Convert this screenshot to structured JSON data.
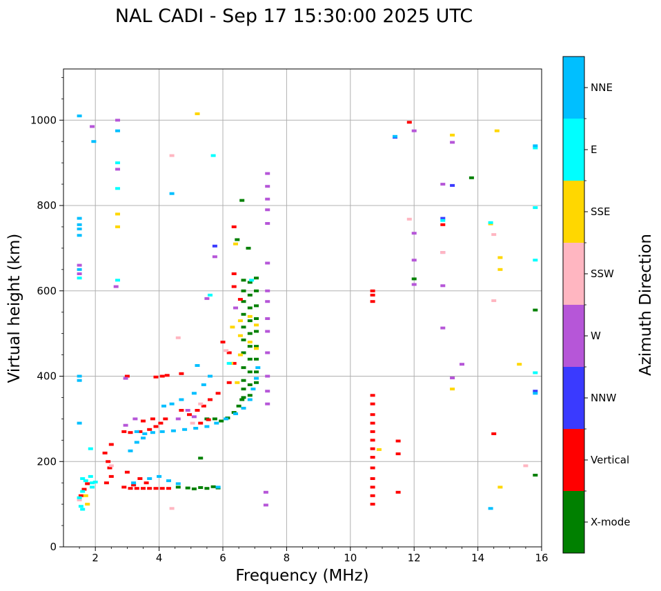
{
  "chart_data": {
    "type": "scatter",
    "title": "NAL CADI - Sep 17 15:30:00 2025 UTC",
    "xlabel": "Frequency (MHz)",
    "ylabel": "Virtual height (km)",
    "xlim": [
      1,
      16
    ],
    "ylim": [
      0,
      1120
    ],
    "xticks": [
      2,
      4,
      6,
      8,
      10,
      12,
      14,
      16
    ],
    "yticks": [
      0,
      200,
      400,
      600,
      800,
      1000
    ],
    "grid": true,
    "colorbar": {
      "label": "Azimuth Direction",
      "categories": [
        {
          "name": "X-mode",
          "color": "#008000"
        },
        {
          "name": "Vertical",
          "color": "#ff0000"
        },
        {
          "name": "NNW",
          "color": "#3a3aff"
        },
        {
          "name": "W",
          "color": "#b656d8"
        },
        {
          "name": "SSW",
          "color": "#ffb6c1"
        },
        {
          "name": "SSE",
          "color": "#ffd700"
        },
        {
          "name": "E",
          "color": "#00ffff"
        },
        {
          "name": "NNE",
          "color": "#00bfff"
        }
      ]
    },
    "series": [
      {
        "name": "X-mode",
        "color": "#008000",
        "points": [
          [
            6.65,
            625
          ],
          [
            6.65,
            600
          ],
          [
            6.65,
            575
          ],
          [
            6.65,
            545
          ],
          [
            6.65,
            515
          ],
          [
            6.65,
            485
          ],
          [
            6.65,
            455
          ],
          [
            6.65,
            420
          ],
          [
            6.65,
            390
          ],
          [
            6.65,
            370
          ],
          [
            6.65,
            350
          ],
          [
            6.85,
            620
          ],
          [
            6.85,
            590
          ],
          [
            6.85,
            560
          ],
          [
            6.85,
            530
          ],
          [
            6.85,
            500
          ],
          [
            6.85,
            470
          ],
          [
            6.85,
            440
          ],
          [
            6.85,
            410
          ],
          [
            6.85,
            380
          ],
          [
            6.85,
            355
          ],
          [
            7.05,
            630
          ],
          [
            7.05,
            600
          ],
          [
            7.05,
            565
          ],
          [
            7.05,
            535
          ],
          [
            7.05,
            505
          ],
          [
            7.05,
            470
          ],
          [
            7.05,
            440
          ],
          [
            7.05,
            410
          ],
          [
            7.05,
            385
          ],
          [
            6.6,
            345
          ],
          [
            6.5,
            330
          ],
          [
            6.35,
            315
          ],
          [
            6.15,
            302
          ],
          [
            5.95,
            295
          ],
          [
            5.75,
            300
          ],
          [
            5.5,
            300
          ],
          [
            4.6,
            140
          ],
          [
            4.9,
            138
          ],
          [
            5.1,
            136
          ],
          [
            5.3,
            139
          ],
          [
            5.5,
            137
          ],
          [
            5.7,
            141
          ],
          [
            5.85,
            138
          ],
          [
            6.45,
            720
          ],
          [
            6.6,
            812
          ],
          [
            6.8,
            700
          ],
          [
            13.8,
            865
          ],
          [
            15.8,
            555
          ],
          [
            15.8,
            168
          ],
          [
            12.0,
            628
          ],
          [
            5.3,
            208
          ]
        ]
      },
      {
        "name": "Vertical",
        "color": "#ff0000",
        "points": [
          [
            3.1,
            137
          ],
          [
            3.3,
            137
          ],
          [
            3.5,
            137
          ],
          [
            3.7,
            137
          ],
          [
            3.9,
            137
          ],
          [
            4.1,
            137
          ],
          [
            4.3,
            137
          ],
          [
            3.2,
            145
          ],
          [
            3.6,
            150
          ],
          [
            3.0,
            175
          ],
          [
            3.4,
            160
          ],
          [
            2.9,
            140
          ],
          [
            2.3,
            220
          ],
          [
            2.4,
            200
          ],
          [
            2.45,
            185
          ],
          [
            2.5,
            165
          ],
          [
            2.35,
            150
          ],
          [
            2.5,
            240
          ],
          [
            1.65,
            135
          ],
          [
            1.75,
            148
          ],
          [
            1.55,
            120
          ],
          [
            2.9,
            270
          ],
          [
            3.1,
            268
          ],
          [
            3.4,
            270
          ],
          [
            3.7,
            275
          ],
          [
            3.9,
            282
          ],
          [
            4.05,
            290
          ],
          [
            3.8,
            300
          ],
          [
            3.5,
            295
          ],
          [
            4.2,
            300
          ],
          [
            4.7,
            320
          ],
          [
            4.95,
            310
          ],
          [
            5.2,
            320
          ],
          [
            5.4,
            330
          ],
          [
            5.6,
            345
          ],
          [
            5.85,
            360
          ],
          [
            6.2,
            385
          ],
          [
            5.3,
            290
          ],
          [
            5.55,
            298
          ],
          [
            3.0,
            400
          ],
          [
            3.9,
            398
          ],
          [
            4.1,
            400
          ],
          [
            4.25,
            402
          ],
          [
            4.7,
            406
          ],
          [
            6.0,
            480
          ],
          [
            6.2,
            455
          ],
          [
            6.35,
            430
          ],
          [
            6.35,
            750
          ],
          [
            6.35,
            640
          ],
          [
            6.35,
            610
          ],
          [
            6.55,
            580
          ],
          [
            10.7,
            600
          ],
          [
            10.7,
            590
          ],
          [
            10.7,
            575
          ],
          [
            10.7,
            355
          ],
          [
            10.7,
            335
          ],
          [
            10.7,
            310
          ],
          [
            10.7,
            290
          ],
          [
            10.7,
            270
          ],
          [
            10.7,
            250
          ],
          [
            10.7,
            230
          ],
          [
            10.7,
            210
          ],
          [
            10.7,
            185
          ],
          [
            10.7,
            160
          ],
          [
            10.7,
            140
          ],
          [
            10.7,
            120
          ],
          [
            10.7,
            100
          ],
          [
            11.5,
            248
          ],
          [
            11.5,
            218
          ],
          [
            11.5,
            128
          ],
          [
            11.85,
            995
          ],
          [
            12.9,
            755
          ],
          [
            14.5,
            265
          ]
        ]
      },
      {
        "name": "NNW",
        "color": "#3a3aff",
        "points": [
          [
            11.4,
            960
          ],
          [
            13.2,
            847
          ],
          [
            12.9,
            770
          ],
          [
            15.8,
            365
          ],
          [
            5.75,
            705
          ]
        ]
      },
      {
        "name": "W",
        "color": "#b656d8",
        "points": [
          [
            2.95,
            285
          ],
          [
            3.25,
            300
          ],
          [
            4.6,
            300
          ],
          [
            4.9,
            320
          ],
          [
            5.1,
            305
          ],
          [
            7.4,
            875
          ],
          [
            7.4,
            845
          ],
          [
            7.4,
            815
          ],
          [
            7.4,
            790
          ],
          [
            7.4,
            758
          ],
          [
            7.4,
            665
          ],
          [
            7.4,
            600
          ],
          [
            7.4,
            575
          ],
          [
            7.4,
            535
          ],
          [
            7.4,
            505
          ],
          [
            7.4,
            455
          ],
          [
            7.4,
            400
          ],
          [
            7.4,
            365
          ],
          [
            7.4,
            335
          ],
          [
            12.0,
            975
          ],
          [
            13.2,
            948
          ],
          [
            12.9,
            850
          ],
          [
            12.9,
            690
          ],
          [
            12.9,
            612
          ],
          [
            12.9,
            513
          ],
          [
            12.0,
            735
          ],
          [
            12.0,
            672
          ],
          [
            12.0,
            615
          ],
          [
            13.5,
            428
          ],
          [
            13.2,
            396
          ],
          [
            7.35,
            128
          ],
          [
            7.35,
            98
          ],
          [
            5.5,
            582
          ],
          [
            5.75,
            680
          ],
          [
            6.4,
            560
          ],
          [
            1.5,
            660
          ],
          [
            1.5,
            640
          ],
          [
            2.7,
            1000
          ],
          [
            1.9,
            985
          ],
          [
            2.7,
            885
          ],
          [
            2.65,
            610
          ],
          [
            2.95,
            395
          ]
        ]
      },
      {
        "name": "SSW",
        "color": "#ffb6c1",
        "points": [
          [
            2.5,
            190
          ],
          [
            1.5,
            110
          ],
          [
            4.6,
            490
          ],
          [
            5.05,
            290
          ],
          [
            5.3,
            335
          ],
          [
            6.1,
            460
          ],
          [
            12.9,
            690
          ],
          [
            14.5,
            732
          ],
          [
            14.5,
            577
          ],
          [
            15.5,
            190
          ],
          [
            11.85,
            768
          ],
          [
            4.4,
            917
          ],
          [
            4.4,
            90
          ]
        ]
      },
      {
        "name": "SSE",
        "color": "#ffd700",
        "points": [
          [
            6.55,
            530
          ],
          [
            6.55,
            495
          ],
          [
            6.55,
            450
          ],
          [
            6.85,
            540
          ],
          [
            6.85,
            480
          ],
          [
            7.05,
            520
          ],
          [
            7.05,
            465
          ],
          [
            6.3,
            515
          ],
          [
            6.25,
            430
          ],
          [
            6.45,
            385
          ],
          [
            13.2,
            965
          ],
          [
            14.6,
            975
          ],
          [
            14.4,
            757
          ],
          [
            14.7,
            678
          ],
          [
            14.7,
            650
          ],
          [
            15.3,
            428
          ],
          [
            13.2,
            370
          ],
          [
            14.7,
            140
          ],
          [
            10.9,
            228
          ],
          [
            5.2,
            1015
          ],
          [
            2.7,
            780
          ],
          [
            2.7,
            750
          ],
          [
            6.4,
            710
          ],
          [
            1.7,
            120
          ],
          [
            1.75,
            100
          ]
        ]
      },
      {
        "name": "E",
        "color": "#00ffff",
        "points": [
          [
            1.6,
            160
          ],
          [
            1.7,
            155
          ],
          [
            1.85,
            165
          ],
          [
            1.9,
            150
          ],
          [
            2.0,
            152
          ],
          [
            1.9,
            140
          ],
          [
            1.6,
            130
          ],
          [
            1.5,
            115
          ],
          [
            1.55,
            95
          ],
          [
            1.6,
            88
          ],
          [
            15.8,
            935
          ],
          [
            15.8,
            795
          ],
          [
            15.8,
            672
          ],
          [
            15.8,
            408
          ],
          [
            14.4,
            760
          ],
          [
            12.9,
            765
          ],
          [
            5.6,
            590
          ],
          [
            5.7,
            917
          ],
          [
            6.9,
            625
          ],
          [
            6.2,
            430
          ],
          [
            1.5,
            630
          ],
          [
            1.85,
            230
          ],
          [
            2.7,
            900
          ],
          [
            2.7,
            840
          ],
          [
            2.7,
            625
          ]
        ]
      },
      {
        "name": "NNE",
        "color": "#00bfff",
        "points": [
          [
            3.55,
            265
          ],
          [
            3.8,
            268
          ],
          [
            4.1,
            270
          ],
          [
            4.45,
            272
          ],
          [
            4.8,
            275
          ],
          [
            5.15,
            278
          ],
          [
            5.5,
            282
          ],
          [
            5.8,
            290
          ],
          [
            6.1,
            300
          ],
          [
            6.4,
            312
          ],
          [
            6.65,
            325
          ],
          [
            6.85,
            345
          ],
          [
            6.95,
            370
          ],
          [
            7.05,
            395
          ],
          [
            7.1,
            420
          ],
          [
            3.1,
            225
          ],
          [
            3.3,
            245
          ],
          [
            3.5,
            255
          ],
          [
            3.3,
            270
          ],
          [
            4.15,
            330
          ],
          [
            4.4,
            335
          ],
          [
            4.7,
            345
          ],
          [
            5.1,
            360
          ],
          [
            5.4,
            380
          ],
          [
            5.6,
            400
          ],
          [
            5.2,
            425
          ],
          [
            3.7,
            160
          ],
          [
            4.0,
            165
          ],
          [
            4.3,
            155
          ],
          [
            4.6,
            148
          ],
          [
            5.85,
            140
          ],
          [
            3.2,
            150
          ],
          [
            1.5,
            770
          ],
          [
            1.5,
            755
          ],
          [
            1.5,
            745
          ],
          [
            1.5,
            730
          ],
          [
            1.5,
            650
          ],
          [
            1.5,
            1010
          ],
          [
            1.5,
            400
          ],
          [
            1.5,
            390
          ],
          [
            1.5,
            290
          ],
          [
            1.95,
            950
          ],
          [
            11.4,
            962
          ],
          [
            15.8,
            940
          ],
          [
            15.8,
            360
          ],
          [
            14.4,
            90
          ],
          [
            4.4,
            828
          ],
          [
            2.7,
            975
          ]
        ]
      }
    ]
  }
}
